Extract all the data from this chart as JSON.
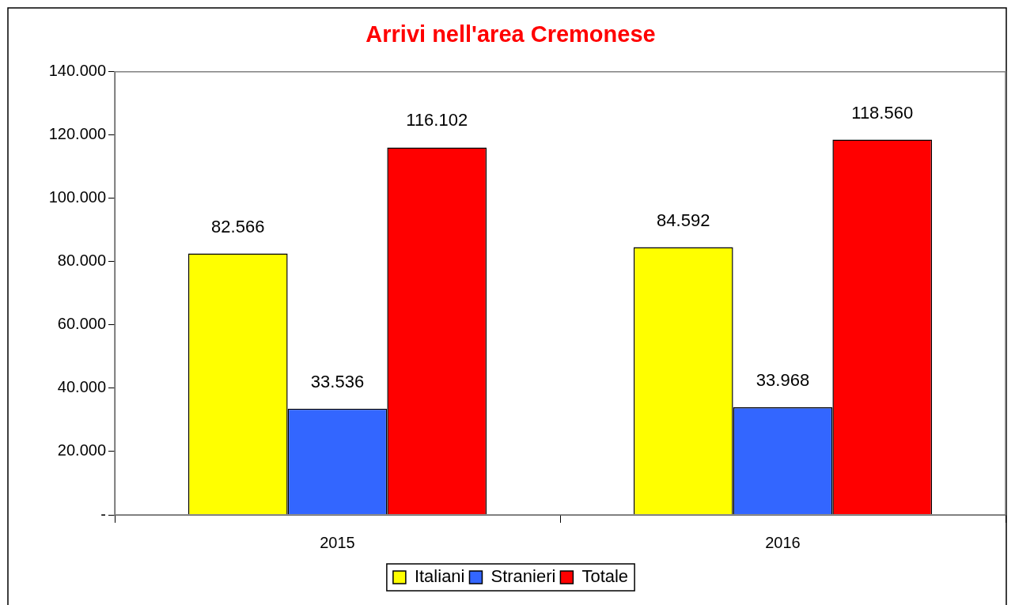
{
  "chart_data": {
    "type": "bar",
    "title": "Arrivi nell'area Cremonese",
    "categories": [
      "2015",
      "2016"
    ],
    "series": [
      {
        "name": "Italiani",
        "color": "#ffff00",
        "values": [
          82566,
          84592
        ],
        "value_labels": [
          "82.566",
          "84.592"
        ]
      },
      {
        "name": "Stranieri",
        "color": "#3366ff",
        "values": [
          33536,
          33968
        ],
        "value_labels": [
          "33.536",
          "33.968"
        ]
      },
      {
        "name": "Totale",
        "color": "#ff0000",
        "values": [
          116102,
          118560
        ],
        "value_labels": [
          "116.102",
          "118.560"
        ]
      }
    ],
    "ylim": [
      0,
      140000
    ],
    "yticks": [
      {
        "value": 0,
        "label": "-"
      },
      {
        "value": 20000,
        "label": "20.000"
      },
      {
        "value": 40000,
        "label": "40.000"
      },
      {
        "value": 60000,
        "label": "60.000"
      },
      {
        "value": 80000,
        "label": "80.000"
      },
      {
        "value": 100000,
        "label": "100.000"
      },
      {
        "value": 120000,
        "label": "120.000"
      },
      {
        "value": 140000,
        "label": "140.000"
      }
    ],
    "grid": false,
    "legend": "bottom"
  }
}
